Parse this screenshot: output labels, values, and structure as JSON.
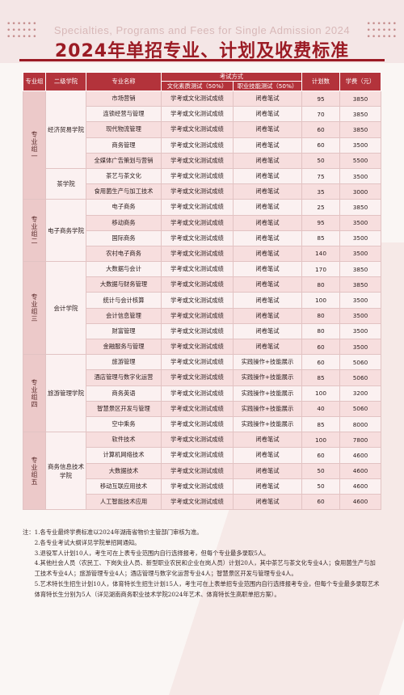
{
  "header": {
    "subtitle_en": "Specialties, Programs and Fees for Single Admission 2024",
    "title": "2024年单招专业、计划及收费标准"
  },
  "table": {
    "head": {
      "group": "专业组",
      "college": "二级学院",
      "major": "专业名称",
      "exam": "考试方式",
      "exam_culture": "文化素质测试（50%）",
      "exam_skill": "职业技能测试（50%）",
      "plan": "计划数",
      "fee": "学费（元）"
    },
    "groups": [
      {
        "name": "专业组一",
        "colleges": [
          {
            "name": "经济贸易学院",
            "rows": [
              {
                "major": "市场营销",
                "culture": "学考或文化测试成绩",
                "skill": "闭卷笔试",
                "plan": "95",
                "fee": "3850"
              },
              {
                "major": "连锁经营与管理",
                "culture": "学考或文化测试成绩",
                "skill": "闭卷笔试",
                "plan": "70",
                "fee": "3850"
              },
              {
                "major": "现代物流管理",
                "culture": "学考或文化测试成绩",
                "skill": "闭卷笔试",
                "plan": "60",
                "fee": "3850"
              },
              {
                "major": "商务管理",
                "culture": "学考或文化测试成绩",
                "skill": "闭卷笔试",
                "plan": "60",
                "fee": "3500"
              },
              {
                "major": "全媒体广告策划与营销",
                "culture": "学考或文化测试成绩",
                "skill": "闭卷笔试",
                "plan": "50",
                "fee": "5500"
              }
            ]
          },
          {
            "name": "茶学院",
            "rows": [
              {
                "major": "茶艺与茶文化",
                "culture": "学考或文化测试成绩",
                "skill": "闭卷笔试",
                "plan": "75",
                "fee": "3500"
              },
              {
                "major": "食用菌生产与加工技术",
                "culture": "学考或文化测试成绩",
                "skill": "闭卷笔试",
                "plan": "35",
                "fee": "3000"
              }
            ]
          }
        ]
      },
      {
        "name": "专业组二",
        "colleges": [
          {
            "name": "电子商务学院",
            "rows": [
              {
                "major": "电子商务",
                "culture": "学考或文化测试成绩",
                "skill": "闭卷笔试",
                "plan": "25",
                "fee": "3850"
              },
              {
                "major": "移动商务",
                "culture": "学考或文化测试成绩",
                "skill": "闭卷笔试",
                "plan": "95",
                "fee": "3500"
              },
              {
                "major": "国际商务",
                "culture": "学考或文化测试成绩",
                "skill": "闭卷笔试",
                "plan": "85",
                "fee": "3500"
              },
              {
                "major": "农村电子商务",
                "culture": "学考或文化测试成绩",
                "skill": "闭卷笔试",
                "plan": "140",
                "fee": "3500"
              }
            ]
          }
        ]
      },
      {
        "name": "专业组三",
        "colleges": [
          {
            "name": "会计学院",
            "rows": [
              {
                "major": "大数据与会计",
                "culture": "学考或文化测试成绩",
                "skill": "闭卷笔试",
                "plan": "170",
                "fee": "3850"
              },
              {
                "major": "大数据与财务管理",
                "culture": "学考或文化测试成绩",
                "skill": "闭卷笔试",
                "plan": "80",
                "fee": "3850"
              },
              {
                "major": "统计与会计核算",
                "culture": "学考或文化测试成绩",
                "skill": "闭卷笔试",
                "plan": "100",
                "fee": "3500"
              },
              {
                "major": "会计信息管理",
                "culture": "学考或文化测试成绩",
                "skill": "闭卷笔试",
                "plan": "80",
                "fee": "3500"
              },
              {
                "major": "财富管理",
                "culture": "学考或文化测试成绩",
                "skill": "闭卷笔试",
                "plan": "80",
                "fee": "3500"
              },
              {
                "major": "金融服务与管理",
                "culture": "学考或文化测试成绩",
                "skill": "闭卷笔试",
                "plan": "60",
                "fee": "3500"
              }
            ]
          }
        ]
      },
      {
        "name": "专业组四",
        "colleges": [
          {
            "name": "旅游管理学院",
            "rows": [
              {
                "major": "旅游管理",
                "culture": "学考或文化测试成绩",
                "skill": "实践操作+技能展示",
                "plan": "60",
                "fee": "5060"
              },
              {
                "major": "酒店管理与数字化运营",
                "culture": "学考或文化测试成绩",
                "skill": "实践操作+技能展示",
                "plan": "85",
                "fee": "5060"
              },
              {
                "major": "商务英语",
                "culture": "学考或文化测试成绩",
                "skill": "实践操作+技能展示",
                "plan": "100",
                "fee": "3200"
              },
              {
                "major": "智慧景区开发与管理",
                "culture": "学考或文化测试成绩",
                "skill": "实践操作+技能展示",
                "plan": "40",
                "fee": "5060"
              },
              {
                "major": "空中乘务",
                "culture": "学考或文化测试成绩",
                "skill": "实践操作+技能展示",
                "plan": "85",
                "fee": "8000"
              }
            ]
          }
        ]
      },
      {
        "name": "专业组五",
        "colleges": [
          {
            "name": "商务信息技术学院",
            "rows": [
              {
                "major": "软件技术",
                "culture": "学考或文化测试成绩",
                "skill": "闭卷笔试",
                "plan": "100",
                "fee": "7800"
              },
              {
                "major": "计算机网络技术",
                "culture": "学考或文化测试成绩",
                "skill": "闭卷笔试",
                "plan": "60",
                "fee": "4600"
              },
              {
                "major": "大数据技术",
                "culture": "学考或文化测试成绩",
                "skill": "闭卷笔试",
                "plan": "50",
                "fee": "4600"
              },
              {
                "major": "移动互联应用技术",
                "culture": "学考或文化测试成绩",
                "skill": "闭卷笔试",
                "plan": "50",
                "fee": "4600"
              },
              {
                "major": "人工智能技术应用",
                "culture": "学考或文化测试成绩",
                "skill": "闭卷笔试",
                "plan": "60",
                "fee": "4600"
              }
            ]
          }
        ]
      }
    ]
  },
  "notes": {
    "label": "注：",
    "items": [
      "1.各专业最终学费标准以2024年湖南省物价主管部门审核为准。",
      "2.各专业考试大纲详见学院单招网通知。",
      "3.退役军人计划10人，考生可在上表专业范围内自行选择报考，但每个专业最多录取5人。",
      "4.其他社会人员（农民工、下岗失业人员、新型职业农民和企业在岗人员）计划20人，其中茶艺与茶文化专业4人；食用菌生产与加工技术专业4人；旅游管理专业4人；酒店管理与数字化运营专业4人；智慧景区开发与管理专业4人。",
      "5.艺术特长生招生计划10人，体育特长生招生计划15人，考生可在上表单招专业范围内自行选择报考专业，但每个专业最多录取艺术体育特长生分别为5人（详见湖南商务职业技术学院2024年艺术、体育特长生高职单招方案）。"
    ]
  }
}
